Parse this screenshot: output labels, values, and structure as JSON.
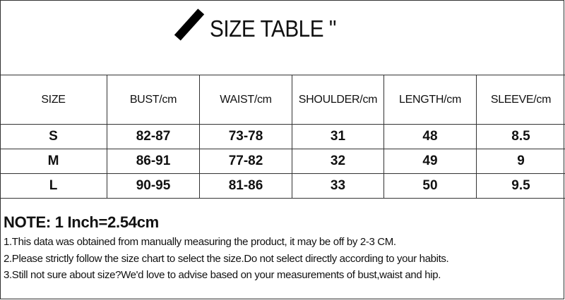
{
  "title": "SIZE TABLE \"",
  "table": {
    "headers": [
      "SIZE",
      "BUST/cm",
      "WAIST/cm",
      "SHOULDER/cm",
      "LENGTH/cm",
      "SLEEVE/cm"
    ],
    "rows": [
      [
        "S",
        "82-87",
        "73-78",
        "31",
        "48",
        "8.5"
      ],
      [
        "M",
        "86-91",
        "77-82",
        "32",
        "49",
        "9"
      ],
      [
        "L",
        "90-95",
        "81-86",
        "33",
        "50",
        "9.5"
      ]
    ]
  },
  "notes": {
    "title": "NOTE: 1 Inch=2.54cm",
    "lines": [
      "1.This data was obtained from manually measuring the product, it may be off by 2-3 CM.",
      "2.Please strictly follow the size chart to select the size.Do not select directly according to your habits.",
      "3.Still not sure about size?We'd love to advise based on your measurements of bust,waist and hip."
    ]
  }
}
